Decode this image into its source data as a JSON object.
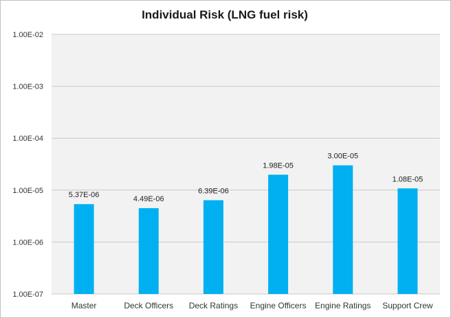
{
  "chart_data": {
    "type": "bar",
    "title": "Individual Risk (LNG fuel risk)",
    "xlabel": "",
    "ylabel": "",
    "yscale": "log",
    "ylim": [
      1e-07,
      0.01
    ],
    "yticks": [
      1e-07,
      1e-06,
      1e-05,
      0.0001,
      0.001,
      0.01
    ],
    "ytick_labels": [
      "1.00E-07",
      "1.00E-06",
      "1.00E-05",
      "1.00E-04",
      "1.00E-03",
      "1.00E-02"
    ],
    "categories": [
      "Master",
      "Deck Officers",
      "Deck Ratings",
      "Engine Officers",
      "Engine Ratings",
      "Support Crew"
    ],
    "values": [
      5.37e-06,
      4.49e-06,
      6.39e-06,
      1.98e-05,
      3e-05,
      1.08e-05
    ],
    "data_labels": [
      "5.37E-06",
      "4.49E-06",
      "6.39E-06",
      "1.98E-05",
      "3.00E-05",
      "1.08E-05"
    ],
    "grid": true,
    "legend": "none",
    "colors": {
      "bar": "#00b0f0",
      "plot_background": "#f2f2f2",
      "gridline": "#c8c8c8"
    }
  }
}
